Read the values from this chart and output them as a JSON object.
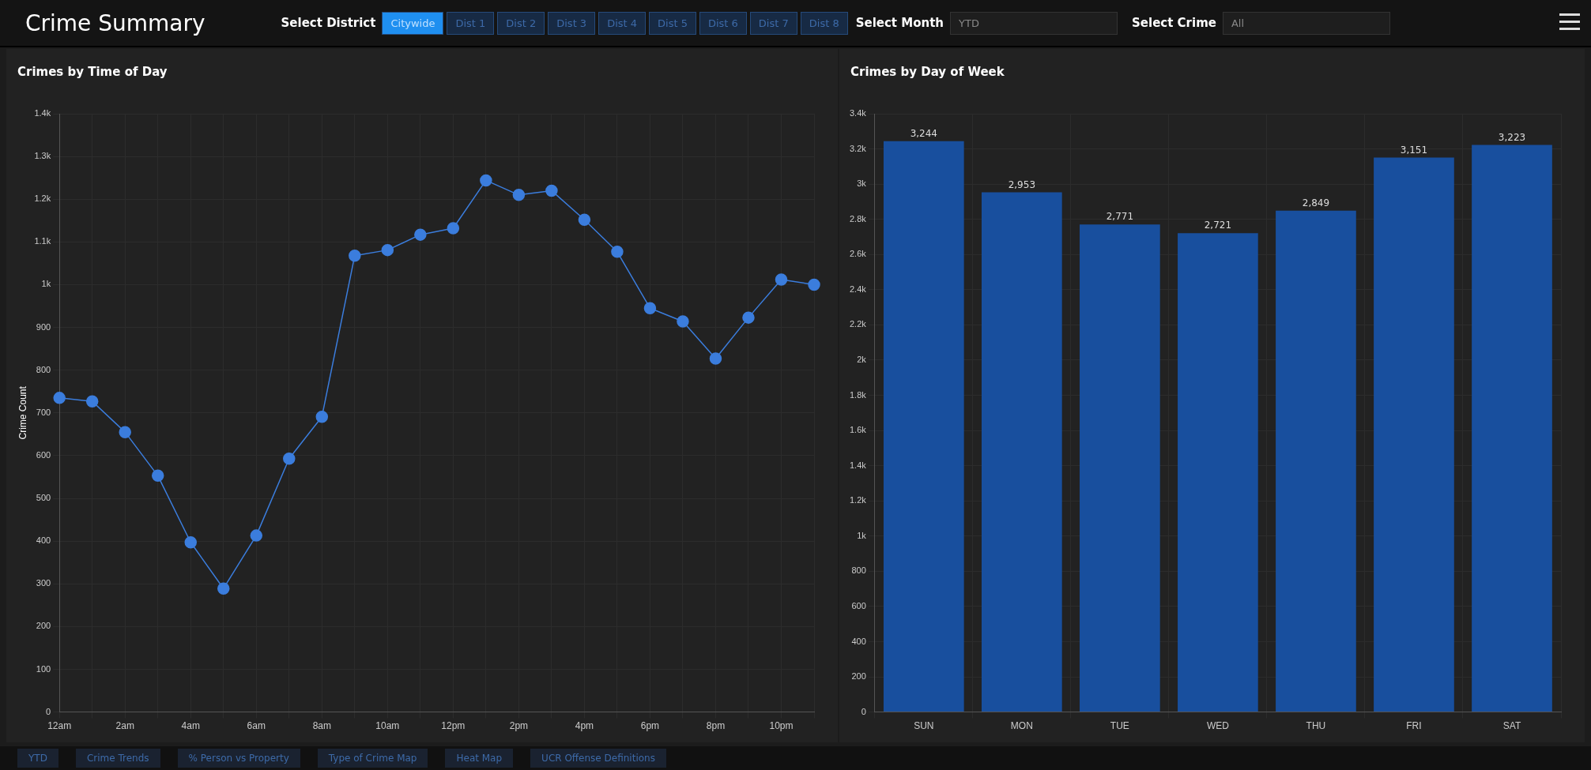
{
  "chart_data": [
    {
      "type": "other",
      "title": "Crime Summary",
      "annotations": [
        "Select District",
        "Citywide",
        "Dist 1",
        "Dist 2",
        "Dist 3",
        "Dist 4",
        "Dist 5",
        "Dist 6",
        "Dist 7",
        "Dist 8",
        "Select Month",
        "YTD",
        "Select Crime",
        "All"
      ]
    },
    {
      "type": "line",
      "title": "Crimes by Time of Day",
      "ylabel": "Crime Count",
      "categories": [
        "12am",
        null,
        "2am",
        null,
        "4am",
        null,
        "6am",
        null,
        "8am",
        null,
        "10am",
        null,
        "12pm",
        null,
        "2pm",
        null,
        "4pm",
        null,
        "6pm",
        null,
        "8pm",
        null,
        "10pm",
        null
      ],
      "values": [
        735,
        727,
        655,
        553,
        397,
        289,
        413,
        593,
        691,
        1068,
        1081,
        1117,
        1132,
        1244,
        1210,
        1220,
        1152,
        1077,
        945,
        914,
        827,
        923,
        1012,
        1000
      ],
      "color": "#3b7ddd",
      "marker": "circle",
      "grid": true,
      "ylim": [
        0,
        1400
      ],
      "yticks": [
        0,
        100,
        200,
        300,
        400,
        500,
        600,
        700,
        800,
        900,
        {
          "value": 1000,
          "label": "1k"
        },
        {
          "value": 1100,
          "label": "1.1k"
        },
        {
          "value": 1200,
          "label": "1.2k"
        },
        {
          "value": 1300,
          "label": "1.3k"
        },
        {
          "value": 1400,
          "label": "1.4k"
        }
      ]
    },
    {
      "type": "bar",
      "title": "Crimes by Day of Week",
      "categories": [
        "SUN",
        "MON",
        "TUE",
        "WED",
        "THU",
        "FRI",
        "SAT"
      ],
      "values": [
        3244,
        2953,
        2771,
        2721,
        2849,
        3151,
        3223
      ],
      "value_labels": [
        "3,244",
        "2,953",
        "2,771",
        "2,721",
        "2,849",
        "3,151",
        "3,223"
      ],
      "color": "#184f9e",
      "grid": true,
      "ylim": [
        0,
        3400
      ],
      "yticks": [
        0,
        200,
        400,
        600,
        800,
        {
          "value": 1000,
          "label": "1k"
        },
        {
          "value": 1200,
          "label": "1.2k"
        },
        {
          "value": 1400,
          "label": "1.4k"
        },
        {
          "value": 1600,
          "label": "1.6k"
        },
        {
          "value": 1800,
          "label": "1.8k"
        },
        {
          "value": 2000,
          "label": "2k"
        },
        {
          "value": 2200,
          "label": "2.2k"
        },
        {
          "value": 2400,
          "label": "2.4k"
        },
        {
          "value": 2600,
          "label": "2.6k"
        },
        {
          "value": 2800,
          "label": "2.8k"
        },
        {
          "value": 3000,
          "label": "3k"
        },
        {
          "value": 3200,
          "label": "3.2k"
        },
        {
          "value": 3400,
          "label": "3.4k"
        }
      ]
    },
    {
      "type": "other",
      "annotations": [
        "YTD",
        "Crime Trends",
        "% Person vs Property",
        "Type of Crime Map",
        "Heat Map",
        "UCR Offense Definitions"
      ]
    }
  ]
}
